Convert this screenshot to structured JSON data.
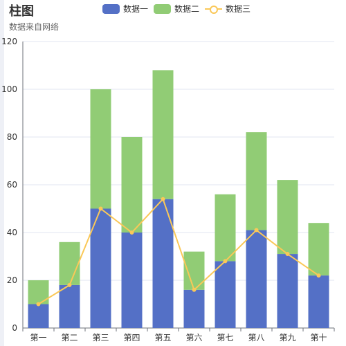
{
  "title": "柱图",
  "subtitle": "数据来自网络",
  "chart_data": {
    "type": "bar",
    "title": "柱图",
    "subtitle": "数据来自网络",
    "categories": [
      "第一",
      "第二",
      "第三",
      "第四",
      "第五",
      "第六",
      "第七",
      "第八",
      "第九",
      "第十"
    ],
    "series": [
      {
        "name": "数据一",
        "type": "bar",
        "stack": true,
        "color": "#5470c6",
        "values": [
          10,
          18,
          50,
          40,
          54,
          16,
          28,
          41,
          31,
          22
        ]
      },
      {
        "name": "数据二",
        "type": "bar",
        "stack": true,
        "color": "#91cc75",
        "values": [
          10,
          18,
          50,
          40,
          54,
          16,
          28,
          41,
          31,
          22
        ]
      },
      {
        "name": "数据三",
        "type": "line",
        "color": "#fac858",
        "values": [
          10,
          18,
          50,
          40,
          54,
          16,
          28,
          41,
          31,
          22
        ]
      }
    ],
    "yticks": [
      "0",
      "20",
      "40",
      "60",
      "80",
      "100",
      "120"
    ],
    "ylim": [
      0,
      120
    ],
    "grid": true,
    "legend_position": "top"
  }
}
